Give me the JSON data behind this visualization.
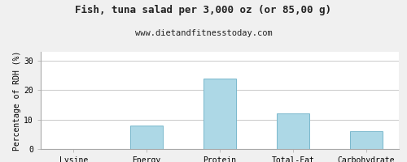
{
  "title": "Fish, tuna salad per 3,000 oz (or 85,00 g)",
  "subtitle": "www.dietandfitnesstoday.com",
  "categories": [
    "Lysine",
    "Energy",
    "Protein",
    "Total-Fat",
    "Carbohydrate"
  ],
  "values": [
    0,
    8,
    24,
    12,
    6
  ],
  "bar_color": "#add8e6",
  "bar_edge_color": "#7ab8cc",
  "ylabel": "Percentage of RDH (%)",
  "ylim": [
    0,
    33
  ],
  "yticks": [
    0,
    10,
    20,
    30
  ],
  "grid_color": "#d0d0d0",
  "background_color": "#f0f0f0",
  "plot_bg_color": "#ffffff",
  "title_fontsize": 9,
  "subtitle_fontsize": 7.5,
  "tick_fontsize": 7,
  "ylabel_fontsize": 7
}
